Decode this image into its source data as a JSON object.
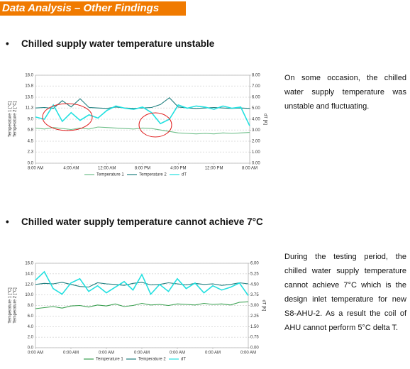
{
  "header": {
    "title": "Data Analysis – Other Findings"
  },
  "sections": [
    {
      "heading": "Chilled supply water temperature unstable",
      "text": "On some occasion, the chilled water supply temperature was unstable and fluctuating."
    },
    {
      "heading": "Chilled water supply temperature cannot achieve 7°C",
      "text": "During the testing period, the chilled water supply temperature cannot achieve 7°C which is the design inlet temperature for new S8-AHU-2. As a result the coil of AHU cannot perform 5°C delta T."
    }
  ],
  "chart_data": [
    {
      "type": "line",
      "y_label": [
        "Temperature 1 [°C]",
        "Temperature 2 [°C]"
      ],
      "y2_label": "dT [K]",
      "x": [
        0,
        2,
        4,
        6,
        8,
        10,
        12,
        14,
        16,
        18,
        20,
        22,
        24,
        26,
        28,
        30,
        32,
        34,
        36,
        38,
        40,
        42,
        44,
        46,
        48
      ],
      "xlim": [
        0,
        48
      ],
      "xticks": [
        {
          "value": 0,
          "label": "8:00 AM"
        },
        {
          "value": 8,
          "label": "4:00 AM"
        },
        {
          "value": 16,
          "label": "12:00 AM"
        },
        {
          "value": 24,
          "label": "8:00 PM"
        },
        {
          "value": 32,
          "label": "4:00 PM"
        },
        {
          "value": 40,
          "label": "12:00 PM"
        },
        {
          "value": 48,
          "label": "8:00 AM"
        }
      ],
      "ylim": [
        0,
        18
      ],
      "yticks": [
        {
          "value": 0,
          "label": "0.0"
        },
        2.3,
        4.5,
        6.8,
        {
          "value": 9,
          "label": "9.0"
        },
        11.3,
        13.5,
        15.8,
        {
          "value": 18,
          "label": "18.0"
        }
      ],
      "y2lim": [
        0,
        8
      ],
      "y2ticks": [
        {
          "value": 0,
          "label": "0.00"
        },
        {
          "value": 1,
          "label": "1.00"
        },
        {
          "value": 2,
          "label": "2.00"
        },
        {
          "value": 3,
          "label": "3.00"
        },
        {
          "value": 4,
          "label": "4.00"
        },
        {
          "value": 5,
          "label": "5.00"
        },
        {
          "value": 6,
          "label": "6.00"
        },
        {
          "value": 7,
          "label": "7.00"
        },
        {
          "value": 8,
          "label": "8.00"
        }
      ],
      "grid": true,
      "series": [
        {
          "name": "Temperature 1",
          "color": "#6fbf8a",
          "values": [
            7.2,
            7.0,
            7.3,
            7.1,
            6.9,
            7.2,
            7.0,
            7.4,
            7.3,
            7.2,
            7.1,
            7.0,
            7.2,
            7.1,
            6.8,
            6.5,
            6.2,
            6.1,
            6.0,
            6.1,
            6.0,
            6.2,
            6.1,
            6.2,
            6.3
          ]
        },
        {
          "name": "Temperature 2",
          "color": "#1f7f7f",
          "values": [
            11.3,
            11.4,
            11.2,
            12.8,
            11.5,
            13.2,
            11.4,
            11.3,
            11.2,
            11.5,
            11.3,
            11.2,
            11.3,
            11.4,
            12.0,
            13.4,
            11.5,
            11.3,
            11.2,
            11.3,
            11.4,
            11.3,
            11.2,
            11.3,
            11.2
          ]
        },
        {
          "name": "dT",
          "color": "#22e0e0",
          "axis": "y2",
          "values": [
            4.2,
            4.0,
            5.3,
            3.8,
            4.6,
            3.9,
            4.4,
            4.1,
            4.8,
            5.2,
            5.0,
            4.9,
            5.1,
            4.6,
            3.6,
            4.0,
            5.3,
            5.0,
            5.2,
            5.1,
            4.9,
            5.2,
            5.0,
            5.1,
            3.4
          ]
        }
      ]
    },
    {
      "type": "line",
      "y_label": [
        "Temperature 1 [°C]",
        "Temperature 2 [°C]"
      ],
      "y2_label": "dT [K]",
      "x": [
        0,
        2,
        4,
        6,
        8,
        10,
        12,
        14,
        16,
        18,
        20,
        22,
        24,
        26,
        28,
        30,
        32,
        34,
        36,
        38,
        40,
        42,
        44,
        46,
        48
      ],
      "xlim": [
        0,
        48
      ],
      "xticks": [
        {
          "value": 0,
          "label": "0:00 AM"
        },
        {
          "value": 8,
          "label": "0:00 AM"
        },
        {
          "value": 16,
          "label": "0:00 AM"
        },
        {
          "value": 24,
          "label": "0:00 AM"
        },
        {
          "value": 32,
          "label": "0:00 AM"
        },
        {
          "value": 40,
          "label": "0:00 AM"
        },
        {
          "value": 48,
          "label": "0:00 AM"
        }
      ],
      "ylim": [
        0,
        16
      ],
      "yticks": [
        {
          "value": 0,
          "label": "0.0"
        },
        {
          "value": 2,
          "label": "2.0"
        },
        {
          "value": 4,
          "label": "4.0"
        },
        {
          "value": 6,
          "label": "6.0"
        },
        {
          "value": 8,
          "label": "8.0"
        },
        {
          "value": 10,
          "label": "10.0"
        },
        {
          "value": 12,
          "label": "12.0"
        },
        {
          "value": 14,
          "label": "14.0"
        },
        {
          "value": 16,
          "label": "16.0"
        }
      ],
      "y2lim": [
        0,
        6
      ],
      "y2ticks": [
        {
          "value": 0,
          "label": "0.00"
        },
        0.75,
        {
          "value": 1.5,
          "label": "1.50"
        },
        2.25,
        {
          "value": 3,
          "label": "3.00"
        },
        3.75,
        {
          "value": 4.5,
          "label": "4.50"
        },
        5.25,
        {
          "value": 6,
          "label": "6.00"
        }
      ],
      "grid": true,
      "series": [
        {
          "name": "Temperature 1",
          "color": "#3aa050",
          "values": [
            7.4,
            7.6,
            7.8,
            7.5,
            7.9,
            8.0,
            7.7,
            8.1,
            7.9,
            8.3,
            7.8,
            8.0,
            8.4,
            8.1,
            8.2,
            8.0,
            8.3,
            8.2,
            8.1,
            8.4,
            8.2,
            8.3,
            8.1,
            8.6,
            8.7
          ]
        },
        {
          "name": "Temperature 2",
          "color": "#1f7f7f",
          "values": [
            12.0,
            12.2,
            12.1,
            12.4,
            12.0,
            11.6,
            11.5,
            12.3,
            12.1,
            12.0,
            11.8,
            12.2,
            12.4,
            11.9,
            12.0,
            12.3,
            12.1,
            11.9,
            12.2,
            12.0,
            12.1,
            11.8,
            12.0,
            12.3,
            12.1
          ]
        },
        {
          "name": "dT",
          "color": "#22e0e0",
          "axis": "y2",
          "values": [
            4.8,
            5.4,
            4.2,
            3.8,
            4.6,
            4.9,
            4.0,
            4.4,
            3.9,
            4.3,
            4.7,
            4.1,
            5.2,
            3.8,
            4.5,
            4.0,
            4.9,
            4.2,
            4.6,
            3.9,
            4.4,
            4.1,
            4.3,
            4.6,
            3.7
          ]
        }
      ]
    }
  ]
}
